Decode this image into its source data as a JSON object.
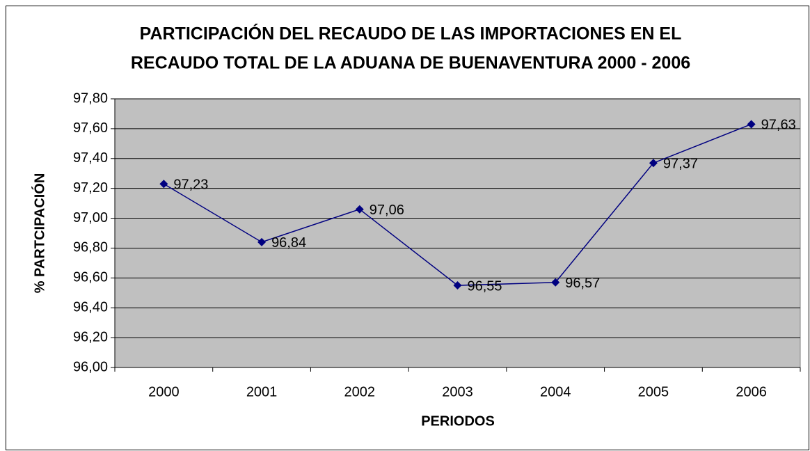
{
  "chart_data": {
    "type": "line",
    "title": [
      "PARTICIPACIÓN DEL RECAUDO DE LAS IMPORTACIONES EN EL",
      "RECAUDO TOTAL DE LA ADUANA DE BUENAVENTURA 2000 - 2006"
    ],
    "x_label": "PERIODOS",
    "y_label": "% PARTCIPACIÓN",
    "categories": [
      "2000",
      "2001",
      "2002",
      "2003",
      "2004",
      "2005",
      "2006"
    ],
    "values": [
      97.23,
      96.84,
      97.06,
      96.55,
      96.57,
      97.37,
      97.63
    ],
    "value_labels": [
      "97,23",
      "96,84",
      "97,06",
      "96,55",
      "96,57",
      "97,37",
      "97,63"
    ],
    "color": "#000080",
    "ylim": [
      96.0,
      97.8
    ],
    "yticks": [
      {
        "value": 96.0,
        "label": "96,00"
      },
      {
        "value": 96.2,
        "label": "96,20"
      },
      {
        "value": 96.4,
        "label": "96,40"
      },
      {
        "value": 96.6,
        "label": "96,60"
      },
      {
        "value": 96.8,
        "label": "96,80"
      },
      {
        "value": 97.0,
        "label": "97,00"
      },
      {
        "value": 97.2,
        "label": "97,20"
      },
      {
        "value": 97.4,
        "label": "97,40"
      },
      {
        "value": 97.6,
        "label": "97,60"
      },
      {
        "value": 97.8,
        "label": "97,80"
      }
    ],
    "grid": true
  }
}
